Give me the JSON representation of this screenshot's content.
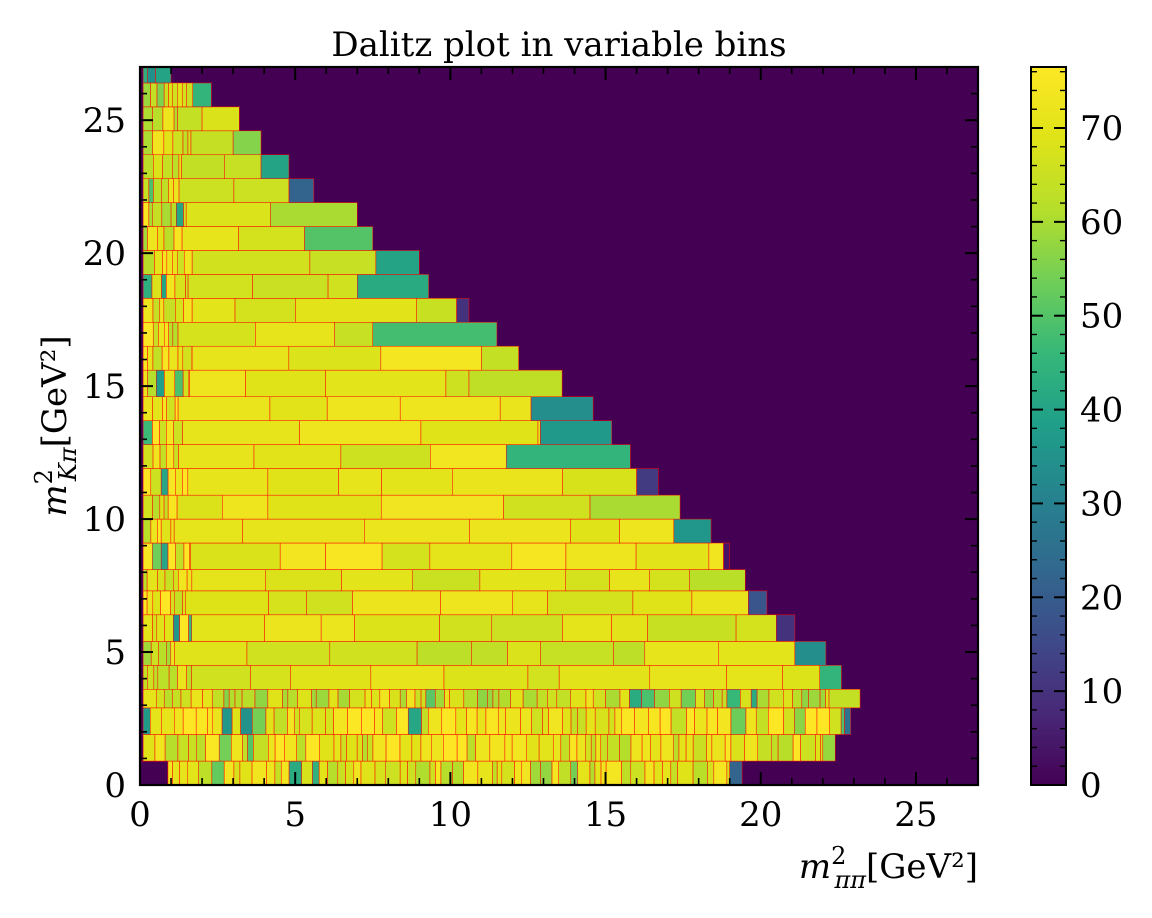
{
  "chart_data": {
    "type": "heatmap",
    "title": "Dalitz plot in variable bins",
    "xlabel": "m²ππ[GeV²]",
    "ylabel": "m²Kπ[GeV²]",
    "xlim": [
      0,
      27
    ],
    "ylim": [
      0,
      27
    ],
    "x_ticks": [
      "0",
      "5",
      "10",
      "15",
      "20",
      "25"
    ],
    "y_ticks": [
      "0",
      "5",
      "10",
      "15",
      "20",
      "25"
    ],
    "colorbar": {
      "colormap": "viridis",
      "range": [
        0,
        76.5
      ],
      "ticks": [
        "0",
        "10",
        "20",
        "30",
        "40",
        "50",
        "60",
        "70"
      ]
    },
    "background_value": 0,
    "bin_edge_color": "#ff0000",
    "rows": [
      {
        "y": [
          0.0,
          0.9
        ],
        "xmax": 19.4,
        "base": 67,
        "cells": [
          [
            19.4,
            22,
            19.0
          ]
        ]
      },
      {
        "y": [
          0.9,
          1.9
        ],
        "xmax": 22.4,
        "base": 69,
        "cells": [
          [
            22.4,
            58,
            22.0
          ]
        ]
      },
      {
        "y": [
          1.9,
          2.9
        ],
        "xmax": 22.9,
        "base": 71,
        "cells": [
          [
            22.9,
            26,
            22.7
          ]
        ]
      },
      {
        "y": [
          2.9,
          3.6
        ],
        "xmax": 23.2,
        "base": 65,
        "cells": [
          [
            23.2,
            64,
            22.2
          ]
        ]
      },
      {
        "y": [
          3.6,
          4.5
        ],
        "xmax": 22.6,
        "base": 68,
        "cells": [
          [
            22.6,
            45,
            21.9
          ]
        ]
      },
      {
        "y": [
          4.5,
          5.4
        ],
        "xmax": 22.1,
        "base": 67,
        "cells": [
          [
            22.1,
            34,
            21.1
          ]
        ]
      },
      {
        "y": [
          5.4,
          6.4
        ],
        "xmax": 21.1,
        "base": 69,
        "cells": [
          [
            21.1,
            10,
            20.5
          ]
        ]
      },
      {
        "y": [
          6.4,
          7.3
        ],
        "xmax": 20.2,
        "base": 70,
        "cells": [
          [
            20.2,
            18,
            19.6
          ]
        ]
      },
      {
        "y": [
          7.3,
          8.1
        ],
        "xmax": 19.5,
        "base": 68,
        "cells": [
          [
            19.5,
            62,
            17.7
          ]
        ]
      },
      {
        "y": [
          8.1,
          9.1
        ],
        "xmax": 19.0,
        "base": 71,
        "cells": [
          [
            19.0,
            4,
            18.8
          ]
        ]
      },
      {
        "y": [
          9.1,
          10.0
        ],
        "xmax": 18.4,
        "base": 69,
        "cells": [
          [
            18.4,
            36,
            17.2
          ]
        ]
      },
      {
        "y": [
          10.0,
          10.9
        ],
        "xmax": 17.4,
        "base": 69,
        "cells": [
          [
            17.4,
            60,
            14.5
          ]
        ]
      },
      {
        "y": [
          10.9,
          11.9
        ],
        "xmax": 16.7,
        "base": 71,
        "cells": [
          [
            16.7,
            12,
            16.0
          ]
        ]
      },
      {
        "y": [
          11.9,
          12.8
        ],
        "xmax": 15.8,
        "base": 70,
        "cells": [
          [
            15.8,
            45,
            11.8
          ]
        ]
      },
      {
        "y": [
          12.8,
          13.7
        ],
        "xmax": 15.2,
        "base": 70,
        "cells": [
          [
            15.2,
            37,
            12.9
          ]
        ]
      },
      {
        "y": [
          13.7,
          14.6
        ],
        "xmax": 14.6,
        "base": 69,
        "cells": [
          [
            14.6,
            34,
            12.6
          ]
        ]
      },
      {
        "y": [
          14.6,
          15.6
        ],
        "xmax": 13.6,
        "base": 69,
        "cells": [
          [
            13.6,
            63,
            10.6
          ]
        ]
      },
      {
        "y": [
          15.6,
          16.5
        ],
        "xmax": 12.2,
        "base": 70,
        "cells": [
          [
            12.2,
            64,
            11.0
          ]
        ]
      },
      {
        "y": [
          16.5,
          17.4
        ],
        "xmax": 11.5,
        "base": 69,
        "cells": [
          [
            11.5,
            48,
            7.5
          ]
        ]
      },
      {
        "y": [
          17.4,
          18.3
        ],
        "xmax": 10.6,
        "base": 69,
        "cells": [
          [
            10.6,
            10,
            10.2
          ]
        ]
      },
      {
        "y": [
          18.3,
          19.2
        ],
        "xmax": 9.3,
        "base": 68,
        "cells": [
          [
            9.3,
            42,
            7.0
          ]
        ]
      },
      {
        "y": [
          19.2,
          20.1
        ],
        "xmax": 9.0,
        "base": 68,
        "cells": [
          [
            9.0,
            40,
            7.6
          ]
        ]
      },
      {
        "y": [
          20.1,
          21.0
        ],
        "xmax": 7.5,
        "base": 67,
        "cells": [
          [
            7.5,
            50,
            5.3
          ]
        ]
      },
      {
        "y": [
          21.0,
          21.9
        ],
        "xmax": 7.0,
        "base": 67,
        "cells": [
          [
            7.0,
            60,
            4.2
          ]
        ]
      },
      {
        "y": [
          21.9,
          22.8
        ],
        "xmax": 5.6,
        "base": 68,
        "cells": [
          [
            5.6,
            22,
            4.8
          ]
        ]
      },
      {
        "y": [
          22.8,
          23.7
        ],
        "xmax": 4.8,
        "base": 67,
        "cells": [
          [
            4.8,
            40,
            3.9
          ]
        ]
      },
      {
        "y": [
          23.7,
          24.6
        ],
        "xmax": 3.9,
        "base": 66,
        "cells": [
          [
            3.9,
            56,
            3.0
          ]
        ]
      },
      {
        "y": [
          24.6,
          25.5
        ],
        "xmax": 3.2,
        "base": 66,
        "cells": [
          [
            3.2,
            68,
            2.0
          ]
        ]
      },
      {
        "y": [
          25.5,
          26.4
        ],
        "xmax": 2.3,
        "base": 63,
        "cells": [
          [
            2.3,
            45,
            1.7
          ]
        ]
      },
      {
        "y": [
          26.4,
          27.0
        ],
        "xmax": 1.0,
        "base": 40,
        "cells": [
          [
            1.0,
            40,
            0.5
          ]
        ]
      }
    ]
  }
}
